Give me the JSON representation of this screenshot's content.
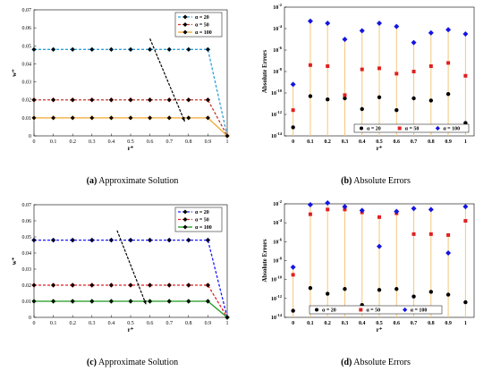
{
  "chart_data": [
    {
      "panel": "a",
      "type": "line",
      "caption_letter": "(a)",
      "caption_text": "Approximate Solution",
      "xlabel": "r⁺",
      "ylabel": "w⁺",
      "xlim": [
        0,
        1
      ],
      "ylim": [
        0,
        0.07
      ],
      "xticks": [
        "0",
        "0.1",
        "0.2",
        "0.3",
        "0.4",
        "0.5",
        "0.6",
        "0.7",
        "0.8",
        "0.9",
        "1"
      ],
      "yticks": [
        "0",
        "0.01",
        "0.02",
        "0.03",
        "0.04",
        "0.05",
        "0.06",
        "0.07"
      ],
      "x": [
        0,
        0.1,
        0.2,
        0.3,
        0.4,
        0.5,
        0.6,
        0.7,
        0.8,
        0.9,
        1
      ],
      "series": [
        {
          "name": "α = 20",
          "color": "#2e9fd8",
          "dash": "3,2",
          "marker": "diamond",
          "marker_color": "#000000",
          "values": [
            0.048,
            0.048,
            0.048,
            0.048,
            0.048,
            0.048,
            0.048,
            0.048,
            0.048,
            0.048,
            0
          ]
        },
        {
          "name": "α = 50",
          "color": "#c0392b",
          "dash": "3,2",
          "marker": "diamond",
          "marker_color": "#000000",
          "values": [
            0.02,
            0.02,
            0.02,
            0.02,
            0.02,
            0.02,
            0.02,
            0.02,
            0.02,
            0.02,
            0
          ]
        },
        {
          "name": "α = 100",
          "color": "#f0a830",
          "dash": "",
          "marker": "diamond",
          "marker_color": "#000000",
          "values": [
            0.01,
            0.01,
            0.01,
            0.01,
            0.01,
            0.01,
            0.01,
            0.01,
            0.01,
            0.01,
            0
          ]
        }
      ],
      "arrow": {
        "from": [
          0.6,
          0.054
        ],
        "to": [
          0.78,
          0.008
        ]
      },
      "legend": "top-right",
      "grid": false
    },
    {
      "panel": "b",
      "type": "scatter",
      "caption_letter": "(b)",
      "caption_text": "Absolute Errors",
      "xlabel": "r⁺",
      "ylabel": "Absolute Errors",
      "log_y": true,
      "ylim_exp": [
        -14,
        -2
      ],
      "xticks": [
        "0",
        "0.1",
        "0.2",
        "0.3",
        "0.4",
        "0.5",
        "0.6",
        "0.7",
        "0.8",
        "0.9",
        "1"
      ],
      "ytick_base": "10",
      "ytick_exps": [
        "-14",
        "-12",
        "-10",
        "-8",
        "-6",
        "-4",
        "-2"
      ],
      "x": [
        0,
        0.1,
        0.2,
        0.3,
        0.4,
        0.5,
        0.6,
        0.7,
        0.8,
        0.9,
        1
      ],
      "stems": true,
      "stem_color": "#f5c77a",
      "series": [
        {
          "name": "α = 20",
          "color": "#000000",
          "marker": "circle",
          "log10_values": [
            -13.2,
            -10.3,
            -10.6,
            -10.5,
            -11.5,
            -10.4,
            -11.6,
            -10.5,
            -10.7,
            -10.1,
            -12.8
          ]
        },
        {
          "name": "α = 50",
          "color": "#e02020",
          "marker": "square",
          "log10_values": [
            -11.6,
            -7.4,
            -7.5,
            -10.2,
            -7.8,
            -7.7,
            -8.2,
            -8.0,
            -7.5,
            -7.2,
            -8.4
          ]
        },
        {
          "name": "α = 100",
          "color": "#1515e0",
          "marker": "diamond",
          "log10_values": [
            -9.2,
            -3.3,
            -3.5,
            -5.0,
            -4.2,
            -3.5,
            -3.8,
            -5.3,
            -4.4,
            -4.1,
            -4.5
          ]
        }
      ],
      "legend": "bottom-right",
      "grid": false
    },
    {
      "panel": "c",
      "type": "line",
      "caption_letter": "(c)",
      "caption_text": "Approximate Solution",
      "xlabel": "r⁺",
      "ylabel": "w⁺",
      "xlim": [
        0,
        1
      ],
      "ylim": [
        0,
        0.07
      ],
      "xticks": [
        "0",
        "0.1",
        "0.2",
        "0.3",
        "0.4",
        "0.5",
        "0.6",
        "0.7",
        "0.8",
        "0.9",
        "1"
      ],
      "yticks": [
        "0",
        "0.01",
        "0.02",
        "0.03",
        "0.04",
        "0.05",
        "0.06",
        "0.07"
      ],
      "x": [
        0,
        0.1,
        0.2,
        0.3,
        0.4,
        0.5,
        0.6,
        0.7,
        0.8,
        0.9,
        1
      ],
      "series": [
        {
          "name": "α = 20",
          "color": "#1a1aff",
          "dash": "3,2",
          "marker": "diamond",
          "marker_color": "#000000",
          "values": [
            0.048,
            0.048,
            0.048,
            0.048,
            0.048,
            0.048,
            0.048,
            0.048,
            0.048,
            0.048,
            0
          ]
        },
        {
          "name": "α = 50",
          "color": "#e02020",
          "dash": "3,2",
          "marker": "diamond",
          "marker_color": "#000000",
          "values": [
            0.02,
            0.02,
            0.02,
            0.02,
            0.02,
            0.02,
            0.02,
            0.02,
            0.02,
            0.02,
            0
          ]
        },
        {
          "name": "α = 100",
          "color": "#1a9a1a",
          "dash": "",
          "marker": "diamond",
          "marker_color": "#000000",
          "values": [
            0.01,
            0.01,
            0.01,
            0.01,
            0.01,
            0.01,
            0.01,
            0.01,
            0.01,
            0.01,
            0
          ]
        }
      ],
      "arrow": {
        "from": [
          0.43,
          0.054
        ],
        "to": [
          0.58,
          0.008
        ]
      },
      "legend": "top-right",
      "grid": false
    },
    {
      "panel": "d",
      "type": "scatter",
      "caption_letter": "(d)",
      "caption_text": "Absolute Errors",
      "xlabel": "r⁺",
      "ylabel": "Absolute Errors",
      "log_y": true,
      "ylim_exp": [
        -14,
        -2
      ],
      "xticks": [
        "0",
        "0.1",
        "0.2",
        "0.3",
        "0.4",
        "0.5",
        "0.6",
        "0.7",
        "0.8",
        "0.9",
        "1"
      ],
      "ytick_base": "10",
      "ytick_exps": [
        "-14",
        "-12",
        "-10",
        "-8",
        "-6",
        "-4",
        "-2"
      ],
      "x": [
        0,
        0.1,
        0.2,
        0.3,
        0.4,
        0.5,
        0.6,
        0.7,
        0.8,
        0.9,
        1
      ],
      "stems": true,
      "stem_color": "#f5c77a",
      "series": [
        {
          "name": "α = 20",
          "color": "#000000",
          "marker": "circle",
          "log10_values": [
            -13.3,
            -10.9,
            -11.5,
            -11.0,
            -12.7,
            -11.1,
            -11.0,
            -11.8,
            -11.3,
            -11.6,
            -12.4
          ]
        },
        {
          "name": "α = 50",
          "color": "#e02020",
          "marker": "square",
          "log10_values": [
            -9.5,
            -3.1,
            -2.6,
            -2.6,
            -2.9,
            -3.4,
            -3.0,
            -5.2,
            -5.2,
            -5.3,
            -3.8
          ]
        },
        {
          "name": "α = 100",
          "color": "#1515e0",
          "marker": "diamond",
          "log10_values": [
            -8.7,
            -2.1,
            -1.9,
            -2.3,
            -2.7,
            -6.5,
            -2.8,
            -2.5,
            -2.6,
            -7.2,
            -2.3
          ]
        }
      ],
      "legend": "bottom",
      "grid": false
    }
  ]
}
